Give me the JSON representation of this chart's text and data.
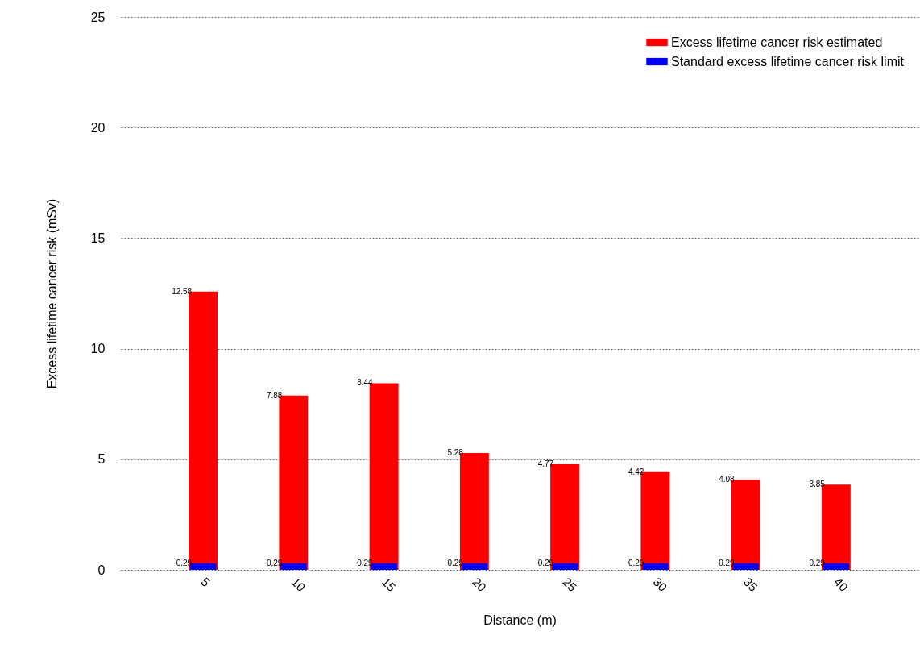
{
  "chart_data": {
    "type": "bar",
    "xlabel": "Distance (m)",
    "ylabel": "Excess lifetime cancer risk (mSv)",
    "categories": [
      "5",
      "10",
      "15",
      "20",
      "25",
      "30",
      "35",
      "40"
    ],
    "series": [
      {
        "name": "Excess lifetime cancer risk estimated",
        "color": "#ff0000",
        "values": [
          12.58,
          7.88,
          8.44,
          5.28,
          4.77,
          4.42,
          4.08,
          3.85
        ]
      },
      {
        "name": "Standard excess lifetime cancer risk limit",
        "color": "#0000ff",
        "values": [
          0.29,
          0.29,
          0.29,
          0.29,
          0.29,
          0.29,
          0.29,
          0.29
        ]
      }
    ],
    "ylim": [
      0,
      25
    ],
    "yticks": [
      0,
      5,
      10,
      15,
      20,
      25
    ],
    "grid": "y",
    "legend": "top right",
    "data_labels": true
  }
}
